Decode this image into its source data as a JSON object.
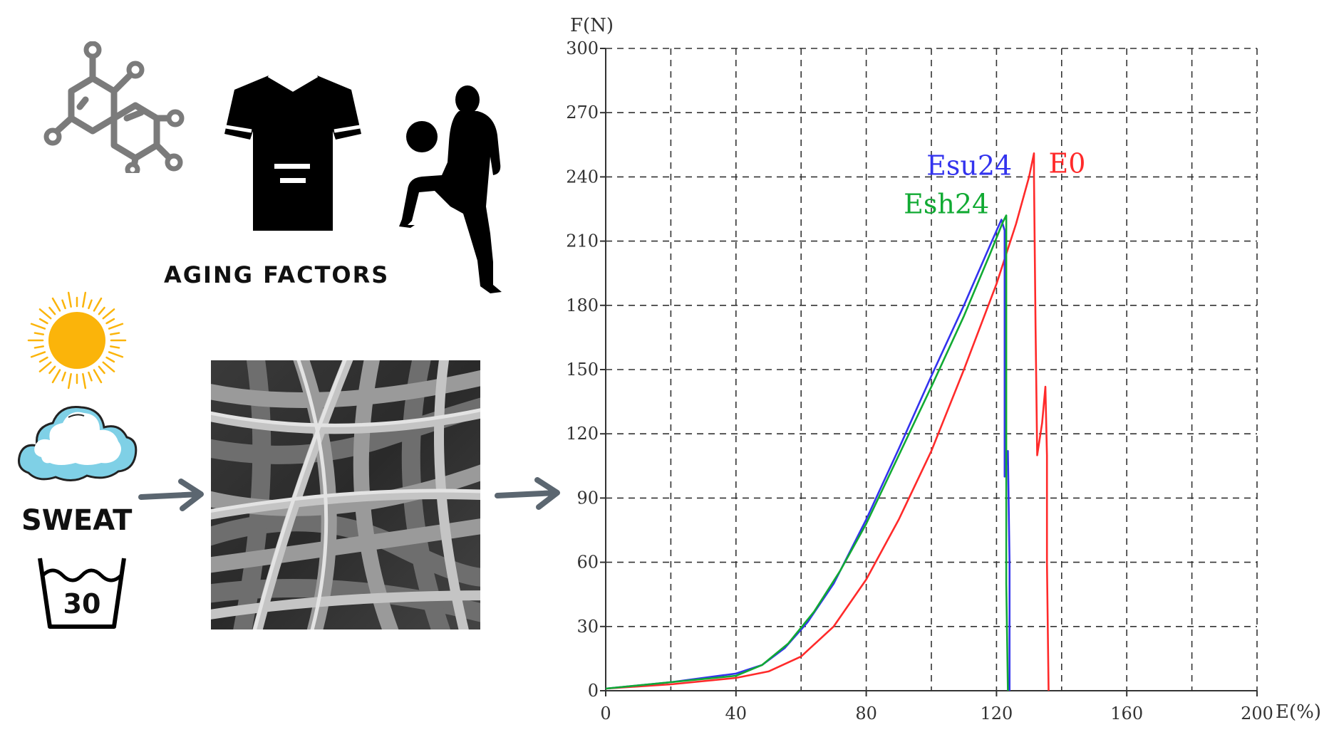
{
  "labels": {
    "aging_factors": "AGING FACTORS",
    "sweat": "SWEAT",
    "wash_temp": "30"
  },
  "icons": [
    "molecule-icon",
    "jersey-icon",
    "football-player-icon",
    "sun-icon",
    "cloud-icon",
    "wash-30-icon",
    "arrow-right-icon"
  ],
  "colors": {
    "E0": "#ff2a2a",
    "Esu24": "#3333ee",
    "Esh24": "#11aa33",
    "sun": "#fbb40a",
    "cloud": "#7fd0e6",
    "arrow": "#5b6670"
  },
  "chart_data": {
    "type": "line",
    "xlabel": "E(%)",
    "ylabel": "F(N)",
    "xlim": [
      0,
      200
    ],
    "ylim": [
      0,
      300
    ],
    "xticks": [
      0,
      40,
      80,
      120,
      160,
      200
    ],
    "yticks": [
      0,
      30,
      60,
      90,
      120,
      150,
      180,
      210,
      240,
      270,
      300
    ],
    "grid": true,
    "series": [
      {
        "name": "E0",
        "color": "#ff2a2a",
        "points": [
          [
            0,
            1
          ],
          [
            20,
            3
          ],
          [
            40,
            6
          ],
          [
            50,
            9
          ],
          [
            60,
            16
          ],
          [
            70,
            30
          ],
          [
            80,
            52
          ],
          [
            90,
            80
          ],
          [
            100,
            112
          ],
          [
            110,
            150
          ],
          [
            120,
            190
          ],
          [
            126,
            218
          ],
          [
            130,
            240
          ],
          [
            131.5,
            251
          ],
          [
            131.5,
            240
          ],
          [
            132,
            170
          ],
          [
            132.5,
            110
          ],
          [
            134,
            125
          ],
          [
            135,
            142
          ],
          [
            135.5,
            110
          ],
          [
            135.5,
            60
          ],
          [
            136,
            0
          ]
        ]
      },
      {
        "name": "Esu24",
        "color": "#3333ee",
        "points": [
          [
            0,
            1
          ],
          [
            20,
            4
          ],
          [
            40,
            8
          ],
          [
            48,
            12
          ],
          [
            55,
            20
          ],
          [
            62,
            32
          ],
          [
            70,
            50
          ],
          [
            80,
            80
          ],
          [
            90,
            113
          ],
          [
            100,
            147
          ],
          [
            110,
            180
          ],
          [
            118,
            208
          ],
          [
            121.5,
            220
          ],
          [
            122.5,
            215
          ],
          [
            122.5,
            150
          ],
          [
            122.5,
            100
          ],
          [
            123.5,
            112
          ],
          [
            124,
            60
          ],
          [
            124,
            0
          ]
        ]
      },
      {
        "name": "Esh24",
        "color": "#11aa33",
        "points": [
          [
            0,
            1
          ],
          [
            20,
            4
          ],
          [
            40,
            7
          ],
          [
            48,
            12
          ],
          [
            56,
            22
          ],
          [
            64,
            37
          ],
          [
            72,
            56
          ],
          [
            80,
            78
          ],
          [
            90,
            110
          ],
          [
            100,
            142
          ],
          [
            110,
            175
          ],
          [
            118,
            204
          ],
          [
            122,
            219
          ],
          [
            123,
            222
          ],
          [
            123,
            200
          ],
          [
            123,
            120
          ],
          [
            123,
            50
          ],
          [
            123.5,
            0
          ]
        ]
      }
    ],
    "annotations": [
      {
        "text": "Esu24",
        "series": "Esu24"
      },
      {
        "text": "Esh24",
        "series": "Esh24"
      },
      {
        "text": "E0",
        "series": "E0"
      }
    ]
  }
}
